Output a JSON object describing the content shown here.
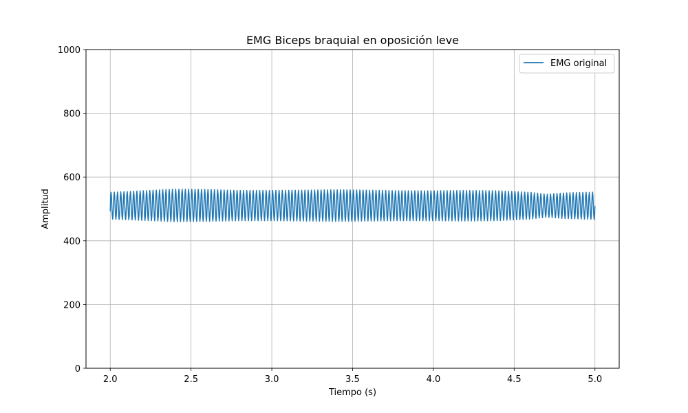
{
  "chart_data": {
    "type": "line",
    "title": "EMG Biceps braquial en oposición leve",
    "xlabel": "Tiempo (s)",
    "ylabel": "Amplitud",
    "xlim": [
      1.85,
      5.15
    ],
    "ylim": [
      0,
      1000
    ],
    "x_ticks": [
      "2.0",
      "2.5",
      "3.0",
      "3.5",
      "4.0",
      "4.5",
      "5.0"
    ],
    "y_ticks": [
      "0",
      "200",
      "400",
      "600",
      "800",
      "1000"
    ],
    "grid": true,
    "legend_position": "top-right",
    "series": [
      {
        "name": "EMG original",
        "color": "#1f77b4",
        "x_range": [
          2.0,
          5.0
        ],
        "oscillation_hz": 50,
        "center": 510,
        "envelope": [
          {
            "t": 2.0,
            "max": 552,
            "min": 468
          },
          {
            "t": 2.2,
            "max": 557,
            "min": 464
          },
          {
            "t": 2.4,
            "max": 562,
            "min": 460
          },
          {
            "t": 2.6,
            "max": 561,
            "min": 461
          },
          {
            "t": 2.8,
            "max": 558,
            "min": 463
          },
          {
            "t": 3.0,
            "max": 558,
            "min": 463
          },
          {
            "t": 3.2,
            "max": 559,
            "min": 462
          },
          {
            "t": 3.4,
            "max": 560,
            "min": 461
          },
          {
            "t": 3.6,
            "max": 559,
            "min": 462
          },
          {
            "t": 3.8,
            "max": 557,
            "min": 463
          },
          {
            "t": 4.0,
            "max": 557,
            "min": 463
          },
          {
            "t": 4.2,
            "max": 558,
            "min": 462
          },
          {
            "t": 4.4,
            "max": 557,
            "min": 463
          },
          {
            "t": 4.6,
            "max": 552,
            "min": 468
          },
          {
            "t": 4.7,
            "max": 546,
            "min": 474
          },
          {
            "t": 4.8,
            "max": 550,
            "min": 470
          },
          {
            "t": 5.0,
            "max": 553,
            "min": 467
          }
        ]
      }
    ]
  }
}
